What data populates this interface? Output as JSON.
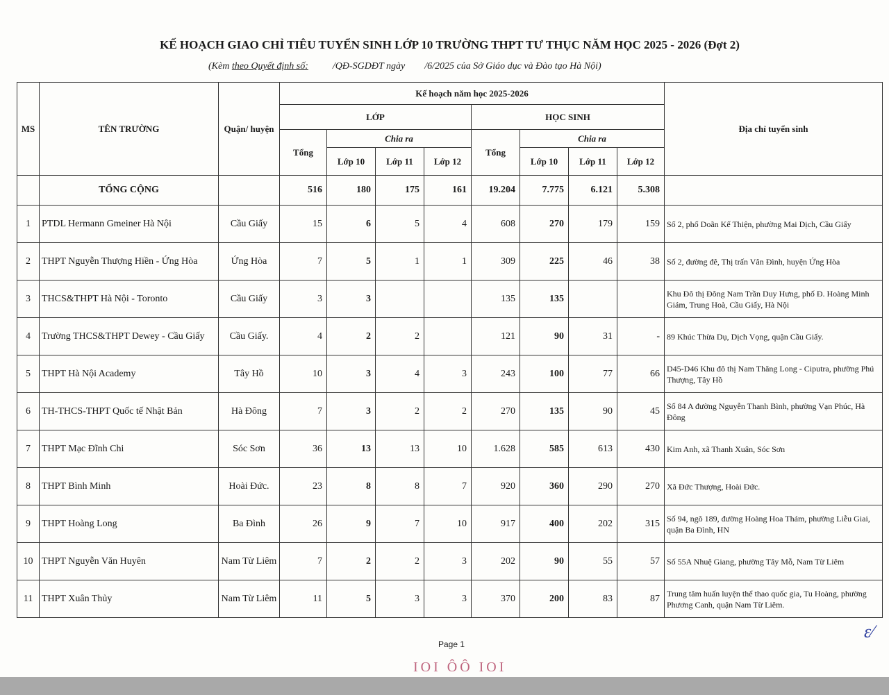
{
  "title": "KẾ HOẠCH GIAO CHỈ TIÊU TUYỂN SINH LỚP 10 TRƯỜNG THPT TƯ THỤC NĂM HỌC 2025 - 2026 (Đợt 2)",
  "subtitle": {
    "prefix": "(Kèm ",
    "part1": "theo Quyết định số:",
    "part2": "          /QĐ-SGDĐT ngày",
    "part3": "        /6/2025 của Sở Giáo dục và Đào tạo",
    "suffix": " Hà Nội)"
  },
  "headers": {
    "ms": "MS",
    "school": "TÊN TRƯỜNG",
    "district": "Quận/ huyện",
    "plan": "Kế hoạch năm học 2025-2026",
    "classes": "LỚP",
    "students": "HỌC SINH",
    "total": "Tổng",
    "breakdown": "Chia ra",
    "grade10": "Lớp 10",
    "grade11": "Lớp 11",
    "grade12": "Lớp 12",
    "address": "Địa chỉ tuyển sinh"
  },
  "total_row": {
    "label": "TỔNG CỘNG",
    "values": [
      "516",
      "180",
      "175",
      "161",
      "19.204",
      "7.775",
      "6.121",
      "5.308"
    ]
  },
  "rows": [
    {
      "ms": "1",
      "school": "PTDL Hermann Gmeiner Hà Nội",
      "district": "Cầu Giấy",
      "values": [
        "15",
        "6",
        "5",
        "4",
        "608",
        "270",
        "179",
        "159"
      ],
      "address": "Số 2, phố Doãn Kế Thiện, phường Mai Dịch, Cầu Giấy"
    },
    {
      "ms": "2",
      "school": "THPT Nguyễn Thượng Hiền - Ứng Hòa",
      "district": "Ứng Hòa",
      "values": [
        "7",
        "5",
        "1",
        "1",
        "309",
        "225",
        "46",
        "38"
      ],
      "address": "Số 2, đường đê, Thị trấn Vân Đình, huyện Ứng Hòa"
    },
    {
      "ms": "3",
      "school": "THCS&THPT Hà Nội - Toronto",
      "district": "Cầu Giấy",
      "values": [
        "3",
        "3",
        "",
        "",
        "135",
        "135",
        "",
        ""
      ],
      "address": "Khu Đô thị Đông Nam Trần Duy Hưng, phố Đ. Hoàng Minh Giám, Trung Hoà, Cầu Giấy, Hà Nội"
    },
    {
      "ms": "4",
      "school": "Trường THCS&THPT Dewey - Cầu Giấy",
      "district": "Cầu Giấy.",
      "values": [
        "4",
        "2",
        "2",
        "",
        "121",
        "90",
        "31",
        "-"
      ],
      "address": "89 Khúc Thừa Dụ, Dịch Vọng, quận Cầu Giấy."
    },
    {
      "ms": "5",
      "school": "THPT Hà Nội Academy",
      "district": "Tây Hồ",
      "values": [
        "10",
        "3",
        "4",
        "3",
        "243",
        "100",
        "77",
        "66"
      ],
      "address": "D45-D46 Khu đô thị Nam Thăng Long - Ciputra, phường Phú Thượng, Tây Hồ"
    },
    {
      "ms": "6",
      "school": "TH-THCS-THPT Quốc tế Nhật Bản",
      "district": "Hà Đông",
      "values": [
        "7",
        "3",
        "2",
        "2",
        "270",
        "135",
        "90",
        "45"
      ],
      "address": "Số 84 A đường Nguyễn Thanh Bình, phường Vạn Phúc, Hà Đông"
    },
    {
      "ms": "7",
      "school": "THPT  Mạc Đĩnh Chi",
      "district": "Sóc Sơn",
      "values": [
        "36",
        "13",
        "13",
        "10",
        "1.628",
        "585",
        "613",
        "430"
      ],
      "address": "Kim Anh, xã Thanh Xuân, Sóc Sơn"
    },
    {
      "ms": "8",
      "school": "THPT Bình Minh",
      "district": "Hoài Đức.",
      "values": [
        "23",
        "8",
        "8",
        "7",
        "920",
        "360",
        "290",
        "270"
      ],
      "address": "Xã Đức Thượng, Hoài Đức."
    },
    {
      "ms": "9",
      "school": "THPT Hoàng Long",
      "district": "Ba Đình",
      "values": [
        "26",
        "9",
        "7",
        "10",
        "917",
        "400",
        "202",
        "315"
      ],
      "address": "Số 94, ngõ 189, đường Hoàng Hoa Thám, phường Liễu Giai, quận Ba Đình, HN"
    },
    {
      "ms": "10",
      "school": "THPT Nguyễn Văn Huyên",
      "district": "Nam Từ Liêm",
      "values": [
        "7",
        "2",
        "2",
        "3",
        "202",
        "90",
        "55",
        "57"
      ],
      "address": "Số 55A Nhuệ Giang, phường Tây Mỗ, Nam Từ Liêm"
    },
    {
      "ms": "11",
      "school": "THPT Xuân Thủy",
      "district": "Nam Từ Liêm",
      "values": [
        "11",
        "5",
        "3",
        "3",
        "370",
        "200",
        "83",
        "87"
      ],
      "address": "Trung tâm huấn luyện thể thao quốc gia, Tu Hoàng, phường Phương Canh, quận Nam Từ Liêm."
    }
  ],
  "footer": {
    "page": "Page 1",
    "stamp": "IOI  ÔÔ  IOI"
  },
  "colors": {
    "ink": "#1a1a1a",
    "stamp": "#b04060",
    "signature": "#3040a0",
    "bottom_bar": "#a9a9a9"
  }
}
